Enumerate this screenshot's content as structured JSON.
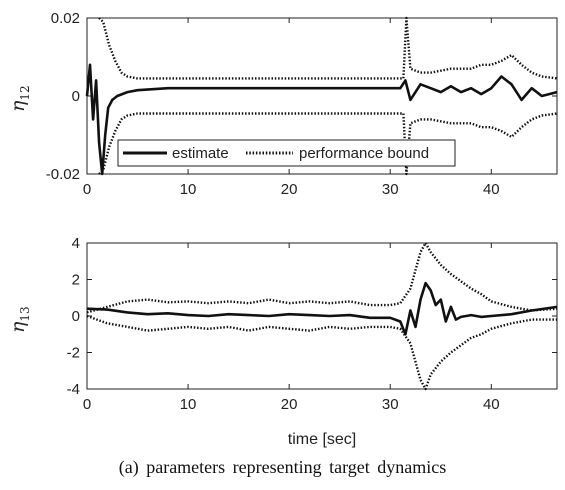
{
  "caption": "(a) parameters representing target dynamics",
  "chart_data": [
    {
      "type": "line",
      "ylabel_symbol": "η",
      "ylabel_subscript": "12",
      "xlim": [
        0,
        46.5
      ],
      "ylim": [
        -0.02,
        0.02
      ],
      "xticks": [
        0,
        10,
        20,
        30,
        40
      ],
      "yticks": [
        -0.02,
        0,
        0.02
      ],
      "ytick_labels": [
        "-0.02",
        "0",
        "0.02"
      ],
      "legend": {
        "position": "bottom-left",
        "entries": [
          {
            "label": "estimate",
            "style": "solid"
          },
          {
            "label": "performance bound",
            "style": "dotted"
          }
        ]
      },
      "series": [
        {
          "name": "estimate",
          "style": "solid",
          "x": [
            0,
            0.3,
            0.6,
            0.9,
            1.2,
            1.5,
            1.8,
            2.1,
            2.5,
            3,
            4,
            5,
            8,
            15,
            20,
            25,
            31,
            31.5,
            32,
            33,
            34,
            35,
            36,
            37,
            38,
            39,
            40,
            41,
            42,
            43,
            44,
            45,
            46.5
          ],
          "y": [
            0,
            0.008,
            -0.006,
            0.004,
            -0.012,
            -0.02,
            -0.01,
            -0.003,
            -0.001,
            0,
            0.001,
            0.0015,
            0.002,
            0.002,
            0.002,
            0.002,
            0.002,
            0.004,
            -0.001,
            0.003,
            0.002,
            0.001,
            0.0025,
            0.001,
            0.002,
            0.0005,
            0.002,
            0.005,
            0.003,
            -0.001,
            0.002,
            0,
            0.001
          ]
        },
        {
          "name": "performance bound",
          "style": "dotted",
          "x": [
            1.2,
            1.6,
            2.2,
            2.8,
            3.4,
            4,
            5,
            10,
            20,
            31.3,
            31.6,
            32,
            33,
            34,
            35,
            36,
            37,
            38,
            39,
            40,
            41,
            42,
            43,
            44,
            45,
            46.5
          ],
          "y": [
            0.022,
            0.019,
            0.013,
            0.009,
            0.006,
            0.005,
            0.0045,
            0.0045,
            0.0045,
            0.0045,
            0.02,
            0.007,
            0.006,
            0.006,
            0.0065,
            0.007,
            0.007,
            0.007,
            0.008,
            0.008,
            0.009,
            0.0105,
            0.008,
            0.006,
            0.005,
            0.0045
          ]
        },
        {
          "name": "performance bound lower",
          "style": "dotted",
          "x": [
            1.2,
            1.6,
            2.2,
            2.8,
            3.4,
            4,
            5,
            10,
            20,
            31.3,
            31.6,
            32,
            33,
            34,
            35,
            36,
            37,
            38,
            39,
            40,
            41,
            42,
            43,
            44,
            45,
            46.5
          ],
          "y": [
            -0.022,
            -0.019,
            -0.013,
            -0.009,
            -0.006,
            -0.005,
            -0.0045,
            -0.0045,
            -0.0045,
            -0.0045,
            -0.02,
            -0.007,
            -0.006,
            -0.006,
            -0.0065,
            -0.007,
            -0.007,
            -0.007,
            -0.008,
            -0.008,
            -0.009,
            -0.0105,
            -0.008,
            -0.006,
            -0.005,
            -0.0045
          ]
        }
      ]
    },
    {
      "type": "line",
      "ylabel_symbol": "η",
      "ylabel_subscript": "13",
      "xlabel": "time [sec]",
      "xlim": [
        0,
        46.5
      ],
      "ylim": [
        -4,
        4
      ],
      "xticks": [
        0,
        10,
        20,
        30,
        40
      ],
      "yticks": [
        -4,
        -2,
        0,
        2,
        4
      ],
      "ytick_labels": [
        "-4",
        "-2",
        "0",
        "2",
        "4"
      ],
      "series": [
        {
          "name": "estimate",
          "style": "solid",
          "x": [
            0,
            2,
            4,
            6,
            8,
            10,
            12,
            14,
            16,
            18,
            20,
            22,
            24,
            26,
            28,
            30,
            31,
            31.5,
            32,
            32.5,
            33,
            33.5,
            34,
            34.5,
            35,
            35.5,
            36,
            36.5,
            37,
            38,
            39,
            40,
            42,
            44,
            46.5
          ],
          "y": [
            0.4,
            0.35,
            0.2,
            0.1,
            0.15,
            0.05,
            0.0,
            0.1,
            0.05,
            0.0,
            0.1,
            0.05,
            0.0,
            0.05,
            -0.1,
            -0.1,
            -0.3,
            -1.0,
            0.3,
            -0.6,
            0.9,
            1.8,
            1.4,
            0.6,
            0.9,
            -0.3,
            0.5,
            -0.2,
            -0.05,
            0.05,
            -0.05,
            0.0,
            0.1,
            0.3,
            0.5
          ]
        },
        {
          "name": "performance bound",
          "style": "dotted",
          "x": [
            0,
            2,
            4,
            6,
            8,
            10,
            12,
            14,
            16,
            18,
            20,
            22,
            24,
            26,
            28,
            30,
            31,
            32,
            33,
            33.5,
            34,
            35,
            36,
            37,
            38,
            39,
            40,
            42,
            44,
            46.5
          ],
          "y": [
            0.2,
            0.5,
            0.8,
            0.9,
            0.75,
            0.8,
            0.7,
            0.8,
            0.7,
            0.9,
            0.7,
            0.8,
            0.7,
            0.8,
            0.6,
            0.6,
            0.7,
            1.5,
            3.5,
            4.0,
            3.5,
            2.8,
            2.3,
            1.9,
            1.5,
            1.2,
            0.8,
            0.5,
            0.3,
            0.4
          ]
        },
        {
          "name": "performance bound lower",
          "style": "dotted",
          "x": [
            0,
            2,
            4,
            6,
            8,
            10,
            12,
            14,
            16,
            18,
            20,
            22,
            24,
            26,
            28,
            30,
            31,
            32,
            33,
            33.5,
            34,
            35,
            36,
            37,
            38,
            39,
            40,
            42,
            44,
            46.5
          ],
          "y": [
            0.0,
            -0.4,
            -0.6,
            -0.8,
            -0.7,
            -0.6,
            -0.7,
            -0.6,
            -0.8,
            -0.6,
            -0.7,
            -0.8,
            -0.6,
            -0.7,
            -0.6,
            -0.6,
            -0.7,
            -1.5,
            -3.5,
            -4.0,
            -3.2,
            -2.5,
            -2.0,
            -1.6,
            -1.2,
            -1.0,
            -0.7,
            -0.4,
            -0.2,
            -0.2
          ]
        }
      ]
    }
  ]
}
